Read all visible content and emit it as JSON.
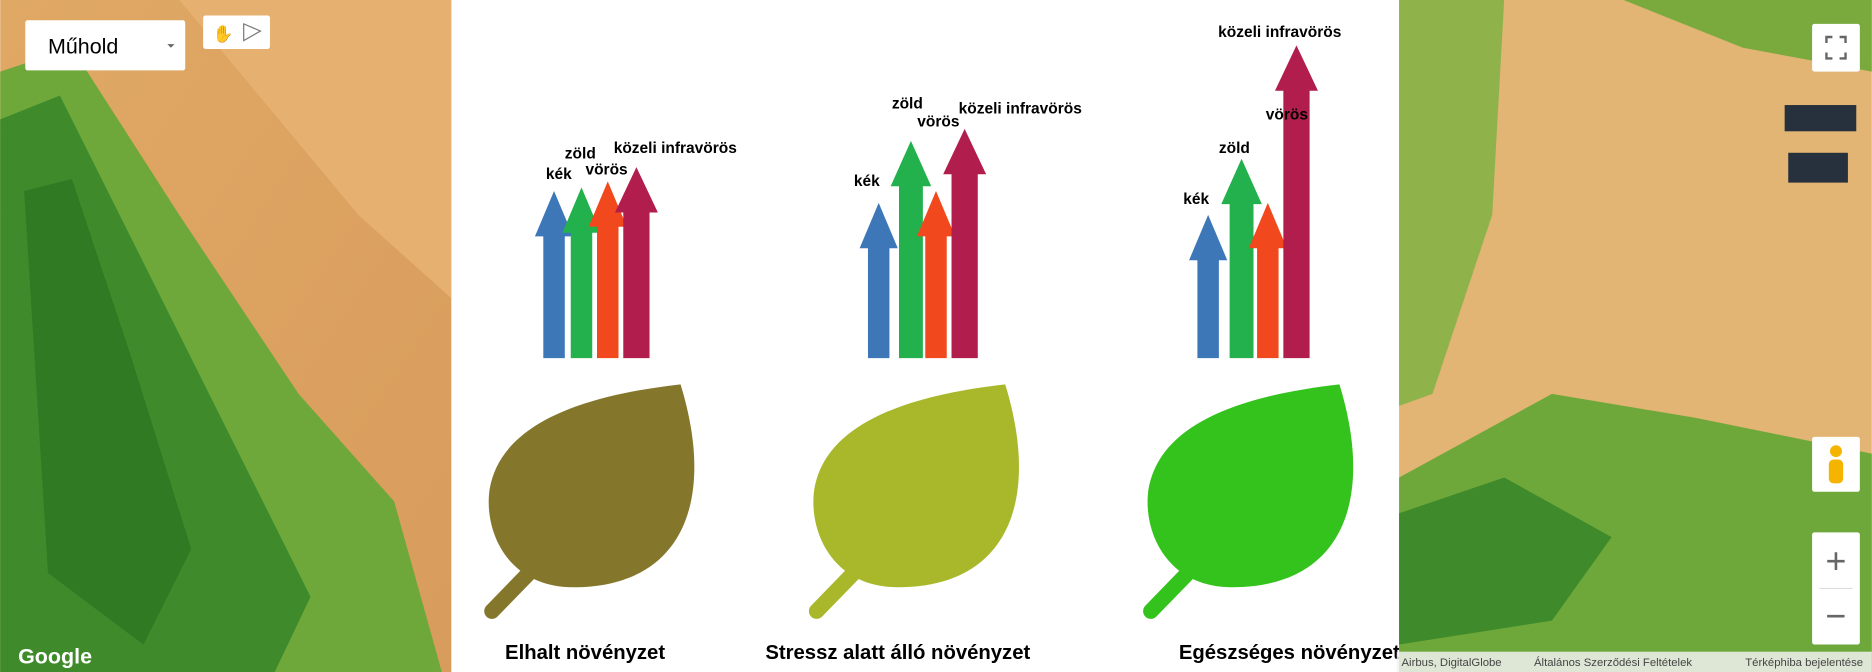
{
  "map_type_control": {
    "selected": "Műhold"
  },
  "google_logo": "Google",
  "zoom_controls": {
    "zoom_in": "+",
    "zoom_out": "−"
  },
  "attribution": [
    "Airbus, DigitalGlobe",
    "Általános Szerződési Feltételek",
    "Térképhiba bejelentése"
  ],
  "panels": [
    {
      "labels": [
        "kék",
        "zöld",
        "vörös",
        "közeli infravörös"
      ],
      "caption": "Elhalt növényzet"
    },
    {
      "labels": [
        "kék",
        "zöld",
        "vörös",
        "közeli infravörös"
      ],
      "caption": "Stressz alatt álló növényzet"
    },
    {
      "labels": [
        "kék",
        "zöld",
        "vörös",
        "közeli infravörös"
      ],
      "caption": "Egészséges növényzet"
    }
  ]
}
